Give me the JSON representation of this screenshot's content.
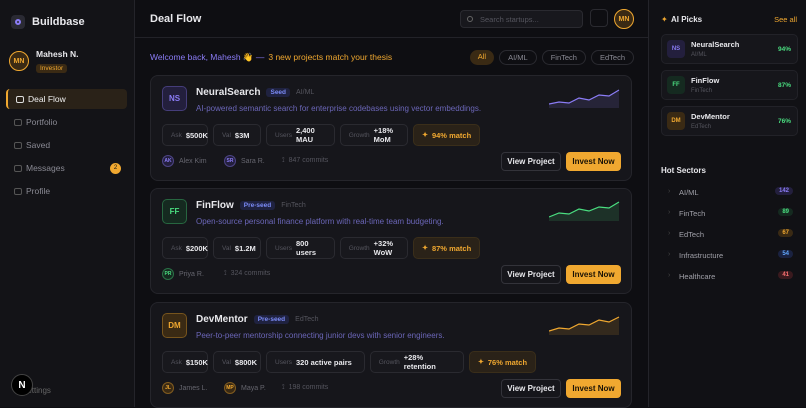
{
  "sidebar": {
    "logo": "Buildbase",
    "user": {
      "initials": "MN",
      "name": "Mahesh N.",
      "role": "Investor"
    },
    "nav": [
      {
        "label": "Deal Flow"
      },
      {
        "label": "Portfolio"
      },
      {
        "label": "Saved"
      },
      {
        "label": "Messages",
        "badge": "2"
      },
      {
        "label": "Profile"
      }
    ],
    "footer": {
      "badge": "N",
      "label": "Settings"
    }
  },
  "header": {
    "title": "Deal Flow",
    "search_placeholder": "Search startups...",
    "avatar": "MN"
  },
  "welcome": {
    "text": "Welcome back, Mahesh 👋 —",
    "highlight": "3 new projects match your thesis"
  },
  "filters": [
    "All",
    "AI/ML",
    "FinTech",
    "EdTech"
  ],
  "projects": [
    {
      "initials": "NS",
      "name": "NeuralSearch",
      "stage": "Seed",
      "sector": "AI/ML",
      "description": "AI-powered semantic search for enterprise codebases using vector embeddings.",
      "metrics": [
        {
          "label": "Ask",
          "value": "$500K"
        },
        {
          "label": "Val",
          "value": "$3M"
        },
        {
          "label": "Users",
          "value": "2,400 MAU"
        },
        {
          "label": "Growth",
          "value": "+18% MoM"
        }
      ],
      "match": "94% match",
      "team": [
        {
          "initials": "AK",
          "name": "Alex Kim"
        },
        {
          "initials": "SR",
          "name": "Sara R."
        }
      ],
      "commits": "847 commits",
      "actions": [
        "View Project",
        "Invest Now"
      ]
    },
    {
      "initials": "FF",
      "name": "FinFlow",
      "stage": "Pre-seed",
      "sector": "FinTech",
      "description": "Open-source personal finance platform with real-time team budgeting.",
      "metrics": [
        {
          "label": "Ask",
          "value": "$200K"
        },
        {
          "label": "Val",
          "value": "$1.2M"
        },
        {
          "label": "Users",
          "value": "800 users"
        },
        {
          "label": "Growth",
          "value": "+32% WoW"
        }
      ],
      "match": "87% match",
      "team": [
        {
          "initials": "PR",
          "name": "Priya R."
        }
      ],
      "commits": "324 commits",
      "actions": [
        "View Project",
        "Invest Now"
      ]
    },
    {
      "initials": "DM",
      "name": "DevMentor",
      "stage": "Pre-seed",
      "sector": "EdTech",
      "description": "Peer-to-peer mentorship connecting junior devs with senior engineers.",
      "metrics": [
        {
          "label": "Ask",
          "value": "$150K"
        },
        {
          "label": "Val",
          "value": "$800K"
        },
        {
          "label": "Users",
          "value": "320 active pairs"
        },
        {
          "label": "Growth",
          "value": "+28% retention"
        }
      ],
      "match": "76% match",
      "team": [
        {
          "initials": "JL",
          "name": "James L."
        },
        {
          "initials": "MP",
          "name": "Maya P."
        }
      ],
      "commits": "198 commits",
      "actions": [
        "View Project",
        "Invest Now"
      ]
    }
  ],
  "ai_picks": {
    "title": "AI Picks",
    "link": "See all",
    "items": [
      {
        "initials": "NS",
        "name": "NeuralSearch",
        "sector": "AI/ML",
        "score": "94%"
      },
      {
        "initials": "FF",
        "name": "FinFlow",
        "sector": "FinTech",
        "score": "87%"
      },
      {
        "initials": "DM",
        "name": "DevMentor",
        "sector": "EdTech",
        "score": "76%"
      }
    ]
  },
  "hot_sectors": {
    "title": "Hot Sectors",
    "items": [
      {
        "name": "AI/ML",
        "count": "142"
      },
      {
        "name": "FinTech",
        "count": "89"
      },
      {
        "name": "EdTech",
        "count": "67"
      },
      {
        "name": "Infrastructure",
        "count": "54"
      },
      {
        "name": "Healthcare",
        "count": "41"
      }
    ]
  }
}
